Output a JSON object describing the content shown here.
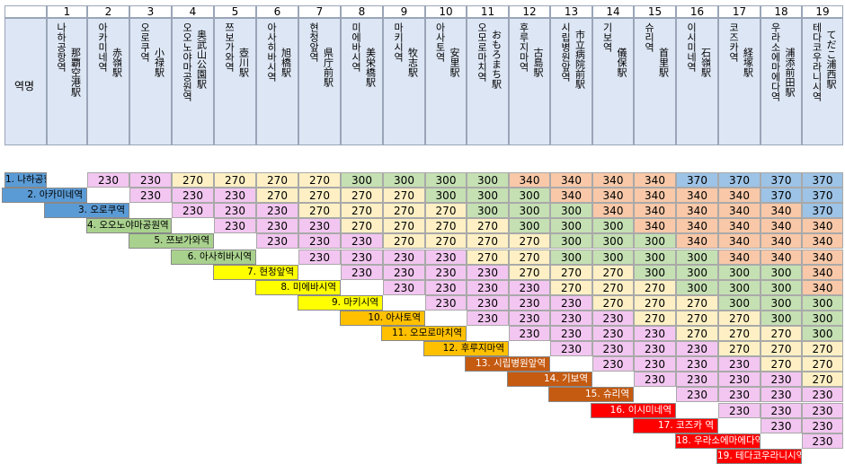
{
  "corner": {
    "label": "역명"
  },
  "stations": [
    {
      "num": "1",
      "ja": "那覇空港駅",
      "ko": "나하공항역",
      "label": "1. 나하공항역"
    },
    {
      "num": "2",
      "ja": "赤嶺駅",
      "ko": "아카미네역",
      "label": "2. 아카미네역"
    },
    {
      "num": "3",
      "ja": "小禄駅",
      "ko": "오로쿠역",
      "label": "3. 오로쿠역"
    },
    {
      "num": "4",
      "ja": "奥武山公園駅",
      "ko": "오오노야마공원역",
      "label": "4. 오오노야마공원역"
    },
    {
      "num": "5",
      "ja": "壺川駅",
      "ko": "쯔보가와역",
      "label": "5. 쯔보가와역"
    },
    {
      "num": "6",
      "ja": "旭橋駅",
      "ko": "아사히바시역",
      "label": "6. 아사히바시역"
    },
    {
      "num": "7",
      "ja": "県庁前駅",
      "ko": "현청앞역",
      "label": "7. 현청앞역"
    },
    {
      "num": "8",
      "ja": "美栄橋駅",
      "ko": "미에바시역",
      "label": "8. 미에바시역"
    },
    {
      "num": "9",
      "ja": "牧志駅",
      "ko": "마키시역",
      "label": "9. 마키시역"
    },
    {
      "num": "10",
      "ja": "安里駅",
      "ko": "아사토역",
      "label": "10. 아사토역"
    },
    {
      "num": "11",
      "ja": "おもろまち駅",
      "ko": "오모로마치역",
      "label": "11. 오모로마치역"
    },
    {
      "num": "12",
      "ja": "古島駅",
      "ko": "후루지마역",
      "label": "12. 후루지마역"
    },
    {
      "num": "13",
      "ja": "市立病院前駅",
      "ko": "시립병원앞역",
      "label": "13. 시립병원앞역"
    },
    {
      "num": "14",
      "ja": "儀保駅",
      "ko": "기보역",
      "label": "14. 기보역"
    },
    {
      "num": "15",
      "ja": "首里駅",
      "ko": "슈리역",
      "label": "15. 슈리역"
    },
    {
      "num": "16",
      "ja": "石嶺駅",
      "ko": "이시미네역",
      "label": "16. 이시미네역"
    },
    {
      "num": "17",
      "ja": "経塚駅",
      "ko": "코즈카역",
      "label": "17. 코즈카 역"
    },
    {
      "num": "18",
      "ja": "浦添前田駅",
      "ko": "우라소에마에다역",
      "label": "18. 우라소에마에다역"
    },
    {
      "num": "19",
      "ja": "てだこ浦西駅",
      "ko": "테다코우라니시역",
      "label": "19. 테다코우라니시역"
    }
  ],
  "fares": [
    [
      230,
      230,
      270,
      270,
      270,
      270,
      300,
      300,
      300,
      300,
      340,
      340,
      340,
      340,
      370,
      370,
      370,
      370
    ],
    [
      230,
      230,
      230,
      270,
      270,
      270,
      270,
      300,
      300,
      300,
      340,
      340,
      340,
      340,
      340,
      370,
      370
    ],
    [
      230,
      230,
      230,
      270,
      270,
      270,
      270,
      300,
      300,
      300,
      340,
      340,
      340,
      340,
      340,
      370
    ],
    [
      230,
      230,
      230,
      270,
      270,
      270,
      270,
      300,
      300,
      300,
      340,
      340,
      340,
      340,
      340
    ],
    [
      230,
      230,
      230,
      270,
      270,
      270,
      270,
      300,
      300,
      300,
      340,
      340,
      340,
      340
    ],
    [
      230,
      230,
      230,
      230,
      270,
      270,
      300,
      300,
      300,
      300,
      340,
      340,
      340
    ],
    [
      230,
      230,
      230,
      230,
      270,
      270,
      270,
      300,
      300,
      300,
      300,
      340
    ],
    [
      230,
      230,
      230,
      230,
      270,
      270,
      270,
      300,
      300,
      300,
      340
    ],
    [
      230,
      230,
      230,
      230,
      270,
      270,
      270,
      300,
      300,
      300
    ],
    [
      230,
      230,
      230,
      230,
      270,
      270,
      270,
      300,
      300
    ],
    [
      230,
      230,
      230,
      230,
      270,
      270,
      270,
      300
    ],
    [
      230,
      230,
      230,
      230,
      270,
      270,
      270
    ],
    [
      230,
      230,
      230,
      230,
      270,
      270
    ],
    [
      230,
      230,
      230,
      230,
      270
    ],
    [
      230,
      230,
      230,
      230
    ],
    [
      230,
      230,
      230
    ],
    [
      230,
      230
    ],
    [
      230
    ]
  ],
  "colors": {
    "230": "#f2c6f0",
    "270": "#fef0c4",
    "300": "#c5e0b3",
    "340": "#f8c8a8",
    "370": "#9dc3e6",
    "label_colors": [
      "#5b9bd5",
      "#5b9bd5",
      "#5b9bd5",
      "#a9d18e",
      "#a9d18e",
      "#a9d18e",
      "#ffff00",
      "#ffff00",
      "#ffff00",
      "#ffc000",
      "#ffc000",
      "#ffc000",
      "#c55a11",
      "#c55a11",
      "#c55a11",
      "#ff0000",
      "#ff0000",
      "#ff0000",
      "#ff0000"
    ]
  }
}
